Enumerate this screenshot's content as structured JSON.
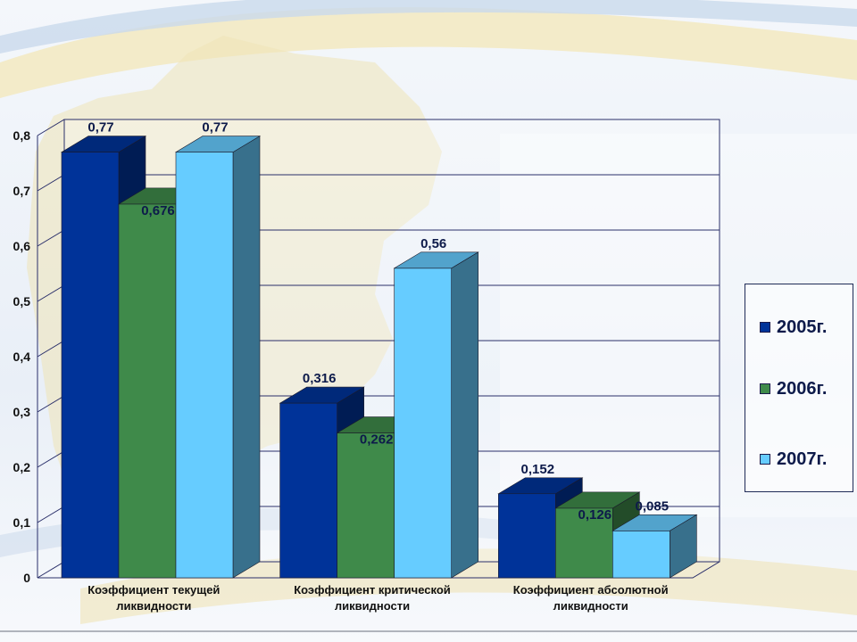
{
  "chart_data": {
    "type": "bar",
    "categories": [
      [
        "Коэффициент текущей",
        "ликвидности"
      ],
      [
        "Коэффициент критической",
        "ликвидности"
      ],
      [
        "Коэффициент абсолютной",
        "ликвидности"
      ]
    ],
    "series": [
      {
        "name": "2005г.",
        "values": [
          0.77,
          0.316,
          0.152
        ],
        "labels": [
          "0,77",
          "0,316",
          "0,152"
        ],
        "color": "#003399"
      },
      {
        "name": "2006г.",
        "values": [
          0.676,
          0.262,
          0.126
        ],
        "labels": [
          "0,676",
          "0,262",
          "0,126"
        ],
        "color": "#3f8a4a"
      },
      {
        "name": "2007г.",
        "values": [
          0.77,
          0.56,
          0.085
        ],
        "labels": [
          "0,77",
          "0,56",
          "0,085"
        ],
        "color": "#66ccff"
      }
    ],
    "yticks": [
      "0",
      "0,1",
      "0,2",
      "0,3",
      "0,4",
      "0,5",
      "0,6",
      "0,7",
      "0,8"
    ],
    "ylim": [
      0,
      0.8
    ],
    "style": "3d-clustered",
    "grid": true,
    "legend_position": "right"
  }
}
